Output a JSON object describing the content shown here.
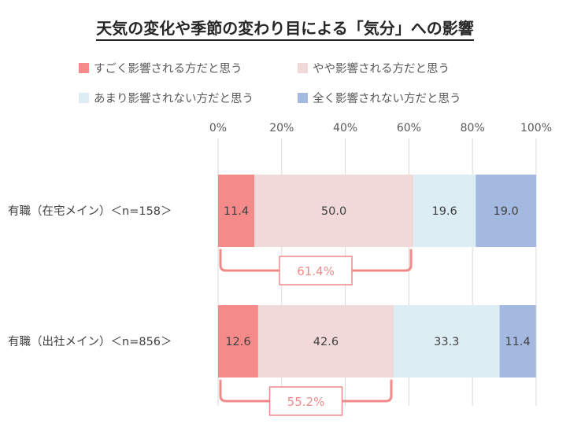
{
  "title": "天気の変化や季節の変わり目による「気分」への影響",
  "colors": {
    "series": [
      "#f48a8a",
      "#f2d9d9",
      "#dcedf3",
      "#a3b9df"
    ],
    "bracket": "#f08a8a",
    "grid": "#d9d9d9"
  },
  "chart_data": {
    "type": "bar",
    "orientation": "horizontal",
    "stacked": true,
    "percent": true,
    "title": "天気の変化や季節の変わり目による「気分」への影響",
    "xlim": [
      0,
      100
    ],
    "x_ticks": [
      "0%",
      "20%",
      "40%",
      "60%",
      "80%",
      "100%"
    ],
    "grid": true,
    "legend_position": "top",
    "categories": [
      "有職（在宅メイン）＜n=158＞",
      "有職（出社メイン）＜n=856＞"
    ],
    "series": [
      {
        "name": "すごく影響される方だと思う",
        "values": [
          11.4,
          12.6
        ]
      },
      {
        "name": "やや影響される方だと思う",
        "values": [
          50.0,
          42.6
        ]
      },
      {
        "name": "あまり影響されない方だと思う",
        "values": [
          19.6,
          33.3
        ]
      },
      {
        "name": "全く影響されない方だと思う",
        "values": [
          19.0,
          11.4
        ]
      }
    ],
    "segment_labels": [
      [
        "11.4",
        "50.0",
        "19.6",
        "19.0"
      ],
      [
        "12.6",
        "42.6",
        "33.3",
        "11.4"
      ]
    ],
    "annotations": [
      {
        "category": 0,
        "text": "61.4%",
        "from": 0,
        "to": 61.4
      },
      {
        "category": 1,
        "text": "55.2%",
        "from": 0,
        "to": 55.2
      }
    ]
  }
}
